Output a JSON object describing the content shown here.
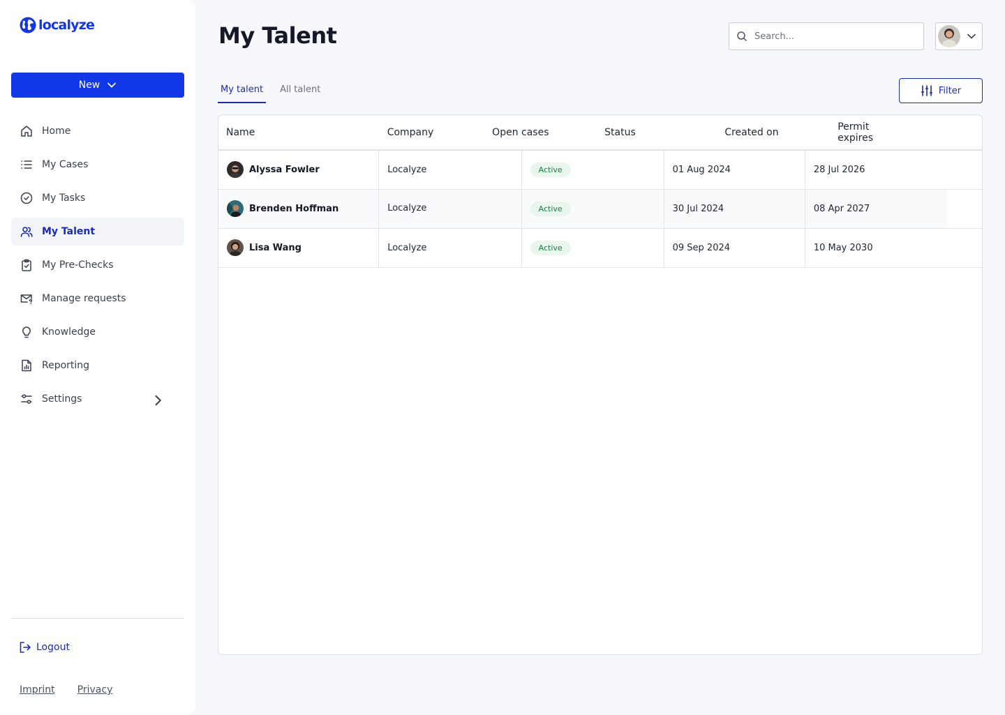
{
  "brand": {
    "name": "localyze",
    "color": "#1237e8"
  },
  "sidebar": {
    "new_label": "New",
    "items": [
      {
        "label": "Home",
        "icon": "home-icon"
      },
      {
        "label": "My Cases",
        "icon": "list-icon"
      },
      {
        "label": "My Tasks",
        "icon": "check-circle-icon"
      },
      {
        "label": "My Talent",
        "icon": "users-icon",
        "active": true
      },
      {
        "label": "My Pre-Checks",
        "icon": "clipboard-check-icon"
      },
      {
        "label": "Manage requests",
        "icon": "mail-question-icon"
      },
      {
        "label": "Knowledge",
        "icon": "lightbulb-icon"
      },
      {
        "label": "Reporting",
        "icon": "report-icon"
      },
      {
        "label": "Settings",
        "icon": "sliders-icon"
      }
    ],
    "logout_label": "Logout",
    "footer": {
      "imprint": "Imprint",
      "privacy": "Privacy"
    }
  },
  "header": {
    "title": "My Talent",
    "search_placeholder": "Search..."
  },
  "tabs": [
    {
      "label": "My talent",
      "active": true
    },
    {
      "label": "All talent"
    }
  ],
  "filter_label": "Filter",
  "table": {
    "columns": [
      "Name",
      "Company",
      "Open cases",
      "Status",
      "Created on",
      "Permit expires"
    ],
    "rows": [
      {
        "name": "Alyssa Fowler",
        "company": "Localyze",
        "status": "Active",
        "created": "01 Aug 2024",
        "expires": "28 Jul 2026"
      },
      {
        "name": "Brenden Hoffman",
        "company": "Localyze",
        "status": "Active",
        "created": "30 Jul 2024",
        "expires": "08 Apr 2027"
      },
      {
        "name": "Lisa Wang",
        "company": "Localyze",
        "status": "Active",
        "created": "09 Sep 2024",
        "expires": "10 May 2030"
      }
    ]
  },
  "colors": {
    "accent": "#1237e8",
    "active_nav": "#1a2bbf",
    "badge_bg": "#e8f6ee",
    "badge_text": "#1d7a47"
  }
}
